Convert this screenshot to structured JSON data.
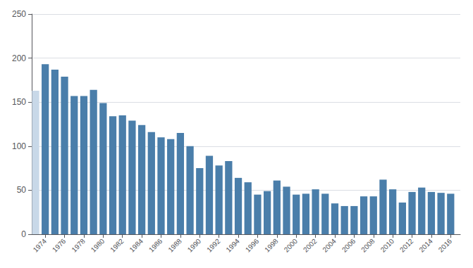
{
  "chart_data": {
    "type": "bar",
    "x": [
      1974,
      1975,
      1976,
      1977,
      1978,
      1979,
      1980,
      1981,
      1982,
      1983,
      1984,
      1985,
      1986,
      1987,
      1988,
      1989,
      1990,
      1991,
      1992,
      1993,
      1994,
      1995,
      1996,
      1997,
      1998,
      1999,
      2000,
      2001,
      2002,
      2003,
      2004,
      2005,
      2006,
      2007,
      2008,
      2009,
      2010,
      2011,
      2012,
      2013,
      2014,
      2015,
      2016,
      1973
    ],
    "values": [
      193,
      187,
      179,
      157,
      157,
      164,
      149,
      134,
      135,
      129,
      124,
      116,
      110,
      108,
      115,
      100,
      75,
      89,
      78,
      83,
      64,
      59,
      45,
      49,
      61,
      54,
      45,
      46,
      51,
      46,
      35,
      32,
      32,
      43,
      43,
      62,
      51,
      36,
      48,
      53,
      48,
      47,
      46,
      163
    ],
    "colors": [
      "#4a7eaa",
      "#4a7eaa",
      "#4a7eaa",
      "#4a7eaa",
      "#4a7eaa",
      "#4a7eaa",
      "#4a7eaa",
      "#4a7eaa",
      "#4a7eaa",
      "#4a7eaa",
      "#4a7eaa",
      "#4a7eaa",
      "#4a7eaa",
      "#4a7eaa",
      "#4a7eaa",
      "#4a7eaa",
      "#4a7eaa",
      "#4a7eaa",
      "#4a7eaa",
      "#4a7eaa",
      "#4a7eaa",
      "#4a7eaa",
      "#4a7eaa",
      "#4a7eaa",
      "#4a7eaa",
      "#4a7eaa",
      "#4a7eaa",
      "#4a7eaa",
      "#4a7eaa",
      "#4a7eaa",
      "#4a7eaa",
      "#4a7eaa",
      "#4a7eaa",
      "#4a7eaa",
      "#4a7eaa",
      "#4a7eaa",
      "#4a7eaa",
      "#4a7eaa",
      "#4a7eaa",
      "#4a7eaa",
      "#4a7eaa",
      "#4a7eaa",
      "#4a7eaa",
      "#c8d8e8"
    ],
    "xlim": [
      1972.6,
      2017.0
    ],
    "xticks": [
      1974,
      1976,
      1978,
      1980,
      1982,
      1984,
      1986,
      1988,
      1990,
      1992,
      1994,
      1996,
      1998,
      2000,
      2002,
      2004,
      2006,
      2008,
      2010,
      2012,
      2014,
      2016
    ],
    "ylim": [
      0,
      250
    ],
    "yticks": [
      0,
      50,
      100,
      150,
      200,
      250
    ],
    "grid": true
  }
}
